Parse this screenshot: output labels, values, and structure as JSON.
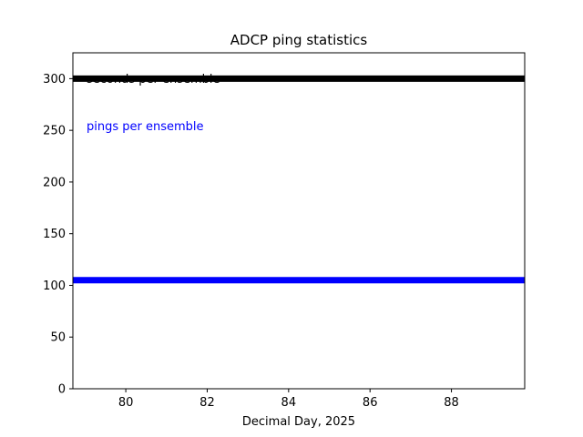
{
  "chart_data": {
    "type": "line",
    "title": "ADCP  ping statistics",
    "xlabel": "Decimal Day, 2025",
    "ylabel": "",
    "xlim": [
      78.7,
      89.8
    ],
    "ylim": [
      0,
      325
    ],
    "x_ticks": [
      80,
      82,
      84,
      86,
      88
    ],
    "y_ticks": [
      0,
      50,
      100,
      150,
      200,
      250,
      300
    ],
    "grid": false,
    "series": [
      {
        "name": "seconds per ensemble",
        "color": "#000000",
        "x": [
          78.7,
          89.8
        ],
        "y": [
          300,
          300
        ]
      },
      {
        "name": "pings per ensemble",
        "color": "#0000ff",
        "x": [
          78.7,
          89.8
        ],
        "y": [
          105,
          105
        ]
      }
    ],
    "annotations": [
      {
        "text": "seconds per ensemble",
        "color": "#000000"
      },
      {
        "text": "pings per ensemble",
        "color": "#0000ff"
      }
    ]
  }
}
